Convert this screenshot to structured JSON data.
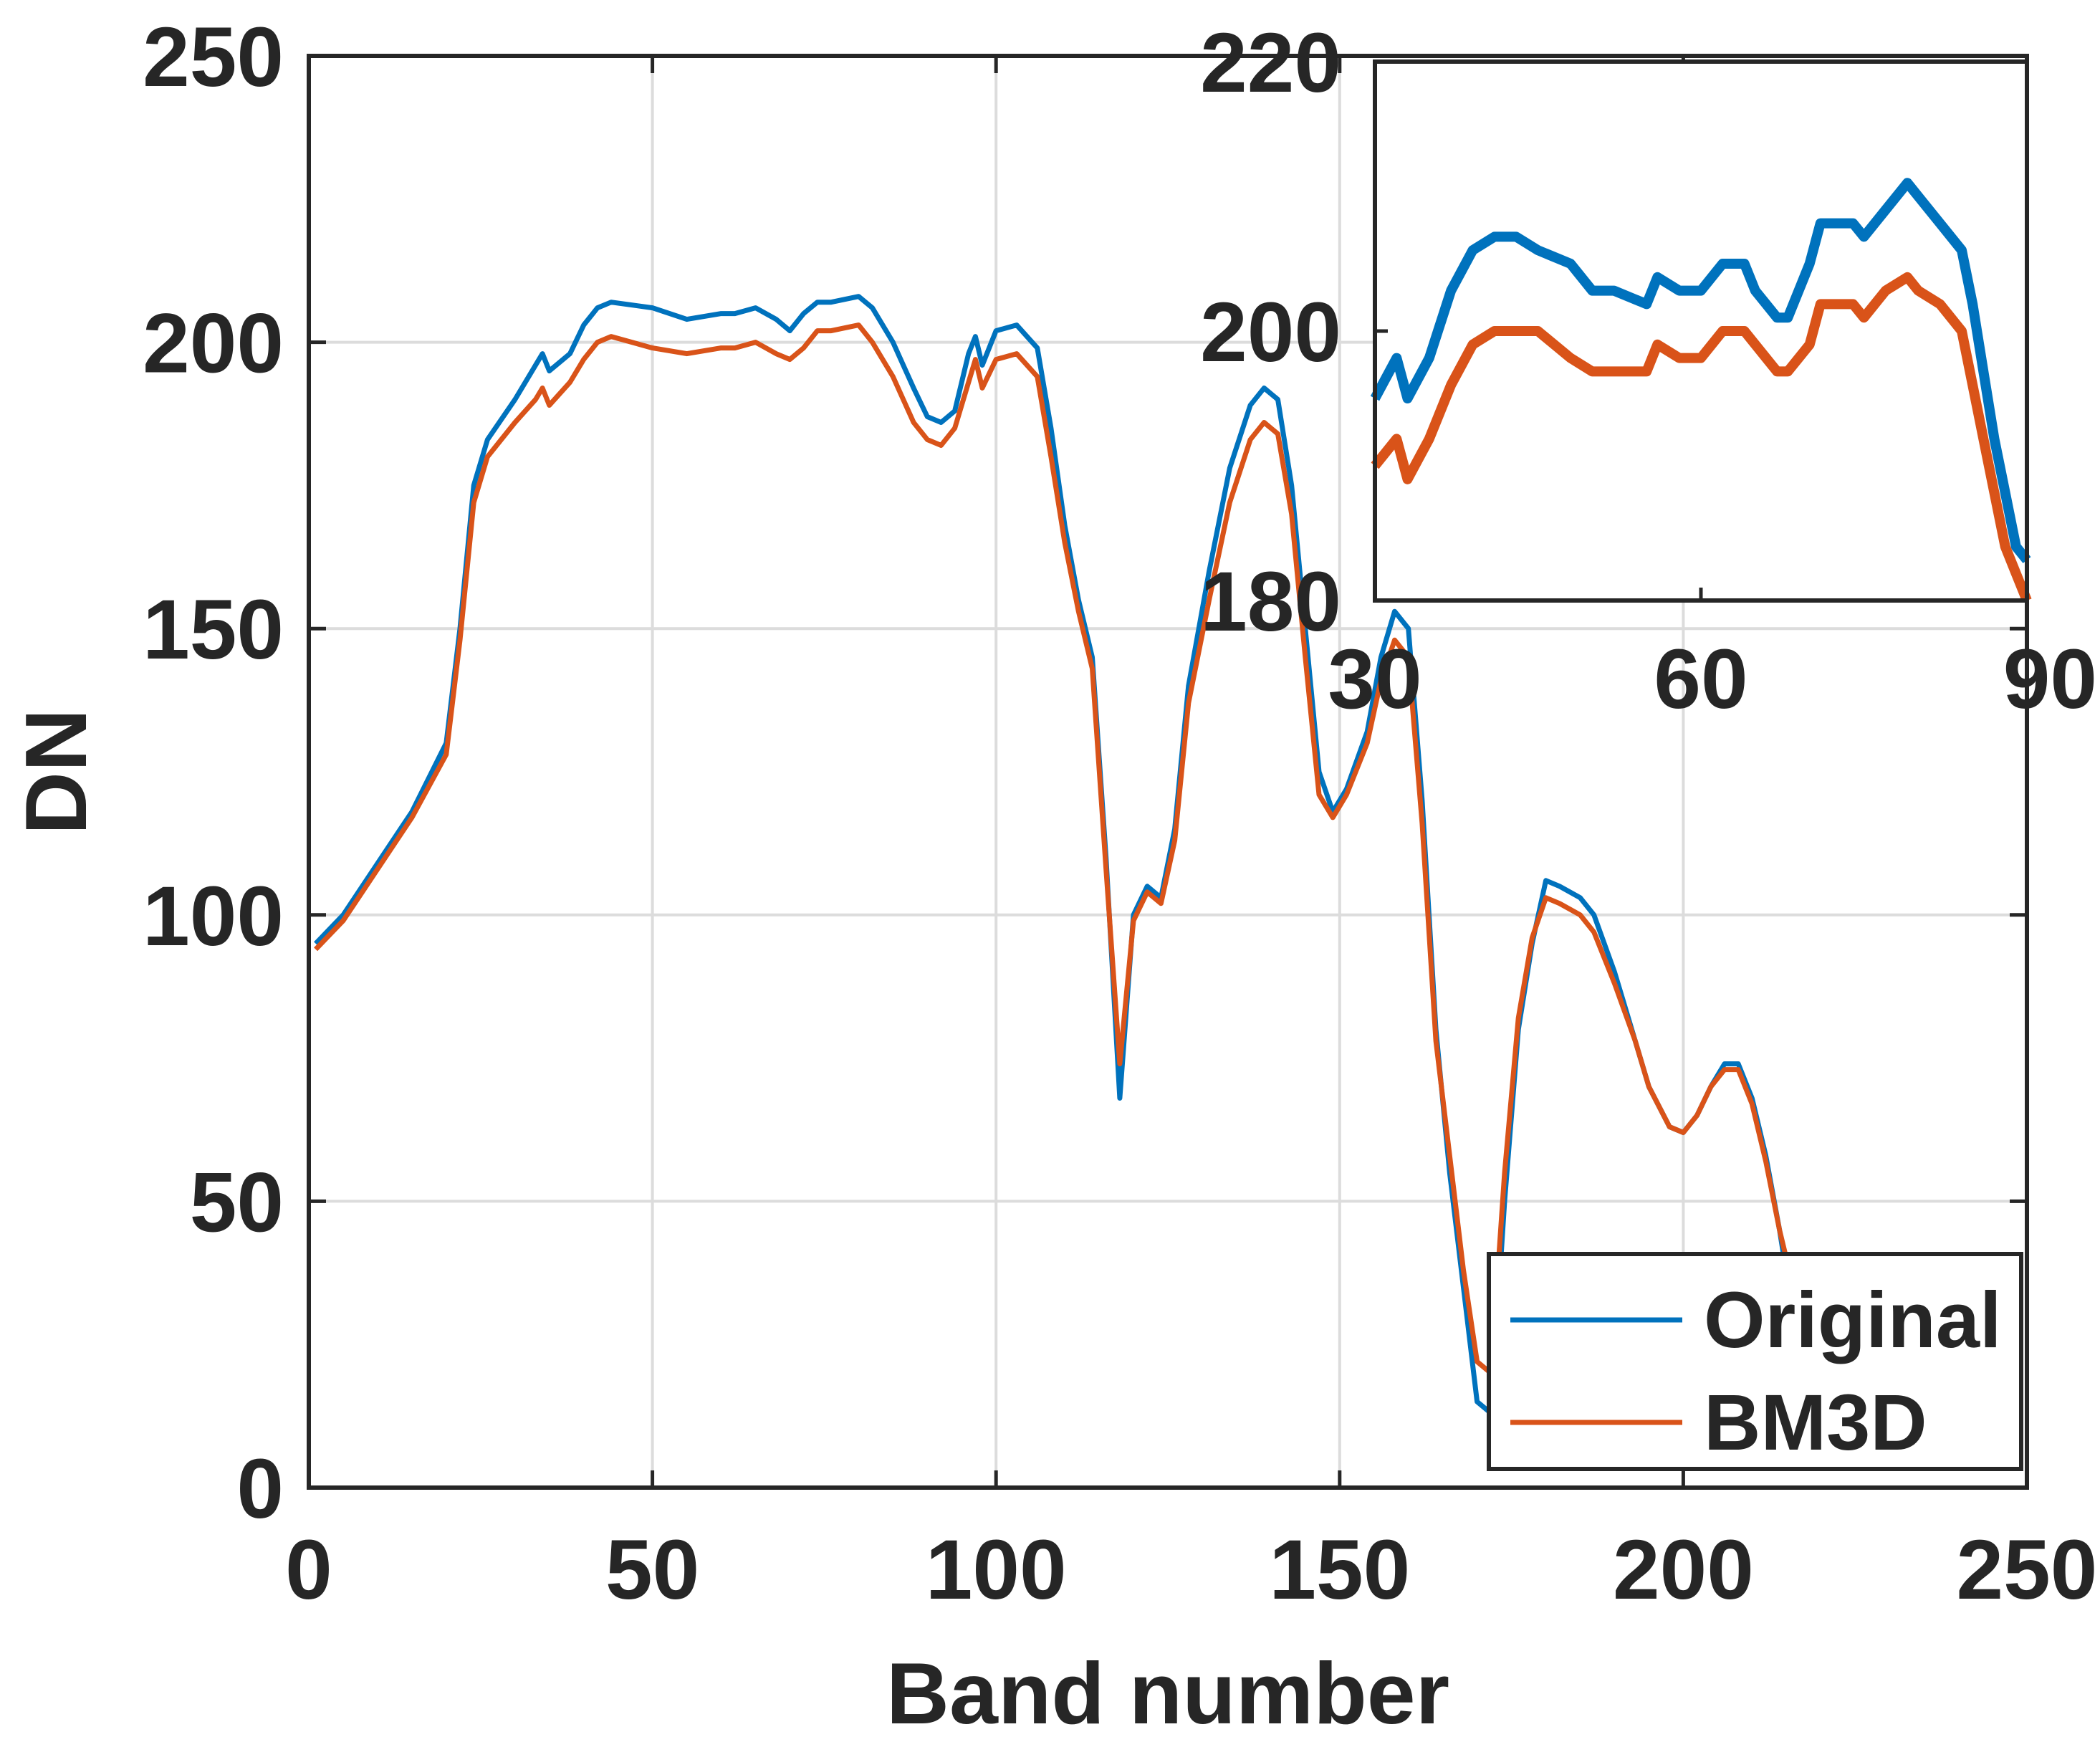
{
  "chart_data": [
    {
      "type": "line",
      "xlabel": "Band number",
      "ylabel": "DN",
      "xlim": [
        0,
        250
      ],
      "ylim": [
        0,
        250
      ],
      "xticks": [
        0,
        50,
        100,
        150,
        200,
        250
      ],
      "yticks": [
        0,
        50,
        100,
        150,
        200,
        250
      ],
      "grid": true,
      "legend": {
        "placement": "bottom-right",
        "entries": [
          "Original",
          "BM3D"
        ]
      },
      "series": [
        {
          "name": "Original",
          "color": "#0072BD",
          "points": [
            [
              1,
              95
            ],
            [
              5,
              100
            ],
            [
              10,
              109
            ],
            [
              15,
              118
            ],
            [
              20,
              130
            ],
            [
              22,
              150
            ],
            [
              24,
              175
            ],
            [
              26,
              183
            ],
            [
              30,
              190
            ],
            [
              33,
              196
            ],
            [
              34,
              198
            ],
            [
              35,
              195
            ],
            [
              38,
              198
            ],
            [
              40,
              203
            ],
            [
              42,
              206
            ],
            [
              44,
              207
            ],
            [
              50,
              206
            ],
            [
              55,
              204
            ],
            [
              60,
              205
            ],
            [
              62,
              205
            ],
            [
              65,
              206
            ],
            [
              68,
              204
            ],
            [
              70,
              202
            ],
            [
              72,
              205
            ],
            [
              74,
              207
            ],
            [
              76,
              207
            ],
            [
              80,
              208
            ],
            [
              82,
              206
            ],
            [
              85,
              200
            ],
            [
              88,
              192
            ],
            [
              90,
              187
            ],
            [
              92,
              186
            ],
            [
              94,
              188
            ],
            [
              96,
              198
            ],
            [
              97,
              201
            ],
            [
              98,
              196
            ],
            [
              100,
              202
            ],
            [
              103,
              203
            ],
            [
              106,
              199
            ],
            [
              108,
              185
            ],
            [
              110,
              168
            ],
            [
              112,
              155
            ],
            [
              114,
              145
            ],
            [
              116,
              110
            ],
            [
              118,
              68
            ],
            [
              120,
              100
            ],
            [
              122,
              105
            ],
            [
              124,
              103
            ],
            [
              126,
              115
            ],
            [
              128,
              140
            ],
            [
              131,
              160
            ],
            [
              134,
              178
            ],
            [
              137,
              189
            ],
            [
              139,
              192
            ],
            [
              141,
              190
            ],
            [
              143,
              175
            ],
            [
              145,
              150
            ],
            [
              147,
              125
            ],
            [
              149,
              118
            ],
            [
              151,
              122
            ],
            [
              154,
              132
            ],
            [
              156,
              145
            ],
            [
              158,
              153
            ],
            [
              160,
              150
            ],
            [
              162,
              120
            ],
            [
              164,
              80
            ],
            [
              166,
              55
            ],
            [
              168,
              35
            ],
            [
              170,
              15
            ],
            [
              172,
              13
            ],
            [
              174,
              50
            ],
            [
              176,
              80
            ],
            [
              178,
              95
            ],
            [
              180,
              106
            ],
            [
              182,
              105
            ],
            [
              185,
              103
            ],
            [
              187,
              100
            ],
            [
              190,
              90
            ],
            [
              193,
              78
            ],
            [
              195,
              70
            ],
            [
              198,
              63
            ],
            [
              200,
              62
            ],
            [
              202,
              65
            ],
            [
              204,
              70
            ],
            [
              206,
              74
            ],
            [
              208,
              74
            ],
            [
              210,
              68
            ],
            [
              212,
              58
            ],
            [
              214,
              45
            ],
            [
              216,
              30
            ],
            [
              218,
              25
            ]
          ]
        },
        {
          "name": "BM3D",
          "color": "#D95319",
          "points": [
            [
              1,
              94
            ],
            [
              5,
              99
            ],
            [
              10,
              108
            ],
            [
              15,
              117
            ],
            [
              20,
              128
            ],
            [
              22,
              148
            ],
            [
              24,
              172
            ],
            [
              26,
              180
            ],
            [
              30,
              186
            ],
            [
              33,
              190
            ],
            [
              34,
              192
            ],
            [
              35,
              189
            ],
            [
              38,
              193
            ],
            [
              40,
              197
            ],
            [
              42,
              200
            ],
            [
              44,
              201
            ],
            [
              50,
              199
            ],
            [
              55,
              198
            ],
            [
              60,
              199
            ],
            [
              62,
              199
            ],
            [
              65,
              200
            ],
            [
              68,
              198
            ],
            [
              70,
              197
            ],
            [
              72,
              199
            ],
            [
              74,
              202
            ],
            [
              76,
              202
            ],
            [
              80,
              203
            ],
            [
              82,
              200
            ],
            [
              85,
              194
            ],
            [
              88,
              186
            ],
            [
              90,
              183
            ],
            [
              92,
              182
            ],
            [
              94,
              185
            ],
            [
              96,
              193
            ],
            [
              97,
              197
            ],
            [
              98,
              192
            ],
            [
              100,
              197
            ],
            [
              103,
              198
            ],
            [
              106,
              194
            ],
            [
              108,
              180
            ],
            [
              110,
              165
            ],
            [
              112,
              153
            ],
            [
              114,
              143
            ],
            [
              116,
              108
            ],
            [
              118,
              74
            ],
            [
              120,
              99
            ],
            [
              122,
              104
            ],
            [
              124,
              102
            ],
            [
              126,
              113
            ],
            [
              128,
              137
            ],
            [
              131,
              155
            ],
            [
              134,
              172
            ],
            [
              137,
              183
            ],
            [
              139,
              186
            ],
            [
              141,
              184
            ],
            [
              143,
              170
            ],
            [
              145,
              145
            ],
            [
              147,
              121
            ],
            [
              149,
              117
            ],
            [
              151,
              121
            ],
            [
              154,
              130
            ],
            [
              156,
              141
            ],
            [
              158,
              148
            ],
            [
              160,
              145
            ],
            [
              162,
              116
            ],
            [
              164,
              78
            ],
            [
              166,
              58
            ],
            [
              168,
              38
            ],
            [
              170,
              22
            ],
            [
              172,
              20
            ],
            [
              174,
              55
            ],
            [
              176,
              82
            ],
            [
              178,
              96
            ],
            [
              180,
              103
            ],
            [
              182,
              102
            ],
            [
              185,
              100
            ],
            [
              187,
              97
            ],
            [
              190,
              88
            ],
            [
              193,
              78
            ],
            [
              195,
              70
            ],
            [
              198,
              63
            ],
            [
              200,
              62
            ],
            [
              202,
              65
            ],
            [
              204,
              70
            ],
            [
              206,
              73
            ],
            [
              208,
              73
            ],
            [
              210,
              67
            ],
            [
              212,
              57
            ],
            [
              214,
              45
            ],
            [
              216,
              35
            ],
            [
              218,
              25
            ]
          ]
        }
      ]
    },
    {
      "type": "line",
      "xlim": [
        30,
        90
      ],
      "ylim": [
        180,
        220
      ],
      "xticks": [
        30,
        60,
        90
      ],
      "yticks": [
        180,
        200,
        220
      ],
      "grid": false,
      "placement": "top-right inset",
      "series": [
        {
          "name": "Original",
          "color": "#0072BD",
          "points": [
            [
              30,
              195
            ],
            [
              32,
              198
            ],
            [
              33,
              195
            ],
            [
              35,
              198
            ],
            [
              37,
              203
            ],
            [
              39,
              206
            ],
            [
              41,
              207
            ],
            [
              43,
              207
            ],
            [
              45,
              206
            ],
            [
              48,
              205
            ],
            [
              50,
              203
            ],
            [
              52,
              203
            ],
            [
              55,
              202
            ],
            [
              56,
              204
            ],
            [
              58,
              203
            ],
            [
              60,
              203
            ],
            [
              62,
              205
            ],
            [
              63,
              205
            ],
            [
              64,
              205
            ],
            [
              65,
              203
            ],
            [
              67,
              201
            ],
            [
              68,
              201
            ],
            [
              70,
              205
            ],
            [
              71,
              208
            ],
            [
              73,
              208
            ],
            [
              74,
              208
            ],
            [
              75,
              207
            ],
            [
              77,
              209
            ],
            [
              79,
              211
            ],
            [
              80,
              210
            ],
            [
              82,
              208
            ],
            [
              84,
              206
            ],
            [
              85,
              202
            ],
            [
              86,
              197
            ],
            [
              87,
              192
            ],
            [
              88,
              188
            ],
            [
              89,
              184
            ],
            [
              90,
              183
            ]
          ]
        },
        {
          "name": "BM3D",
          "color": "#D95319",
          "points": [
            [
              30,
              190
            ],
            [
              32,
              192
            ],
            [
              33,
              189
            ],
            [
              35,
              192
            ],
            [
              37,
              196
            ],
            [
              39,
              199
            ],
            [
              41,
              200
            ],
            [
              43,
              200
            ],
            [
              45,
              200
            ],
            [
              48,
              198
            ],
            [
              50,
              197
            ],
            [
              52,
              197
            ],
            [
              55,
              197
            ],
            [
              56,
              199
            ],
            [
              58,
              198
            ],
            [
              60,
              198
            ],
            [
              62,
              200
            ],
            [
              63,
              200
            ],
            [
              64,
              200
            ],
            [
              65,
              199
            ],
            [
              67,
              197
            ],
            [
              68,
              197
            ],
            [
              70,
              199
            ],
            [
              71,
              202
            ],
            [
              73,
              202
            ],
            [
              74,
              202
            ],
            [
              75,
              201
            ],
            [
              77,
              203
            ],
            [
              79,
              204
            ],
            [
              80,
              203
            ],
            [
              82,
              202
            ],
            [
              84,
              200
            ],
            [
              85,
              196
            ],
            [
              86,
              192
            ],
            [
              87,
              188
            ],
            [
              88,
              184
            ],
            [
              89,
              182
            ],
            [
              90,
              180
            ]
          ]
        }
      ]
    }
  ]
}
